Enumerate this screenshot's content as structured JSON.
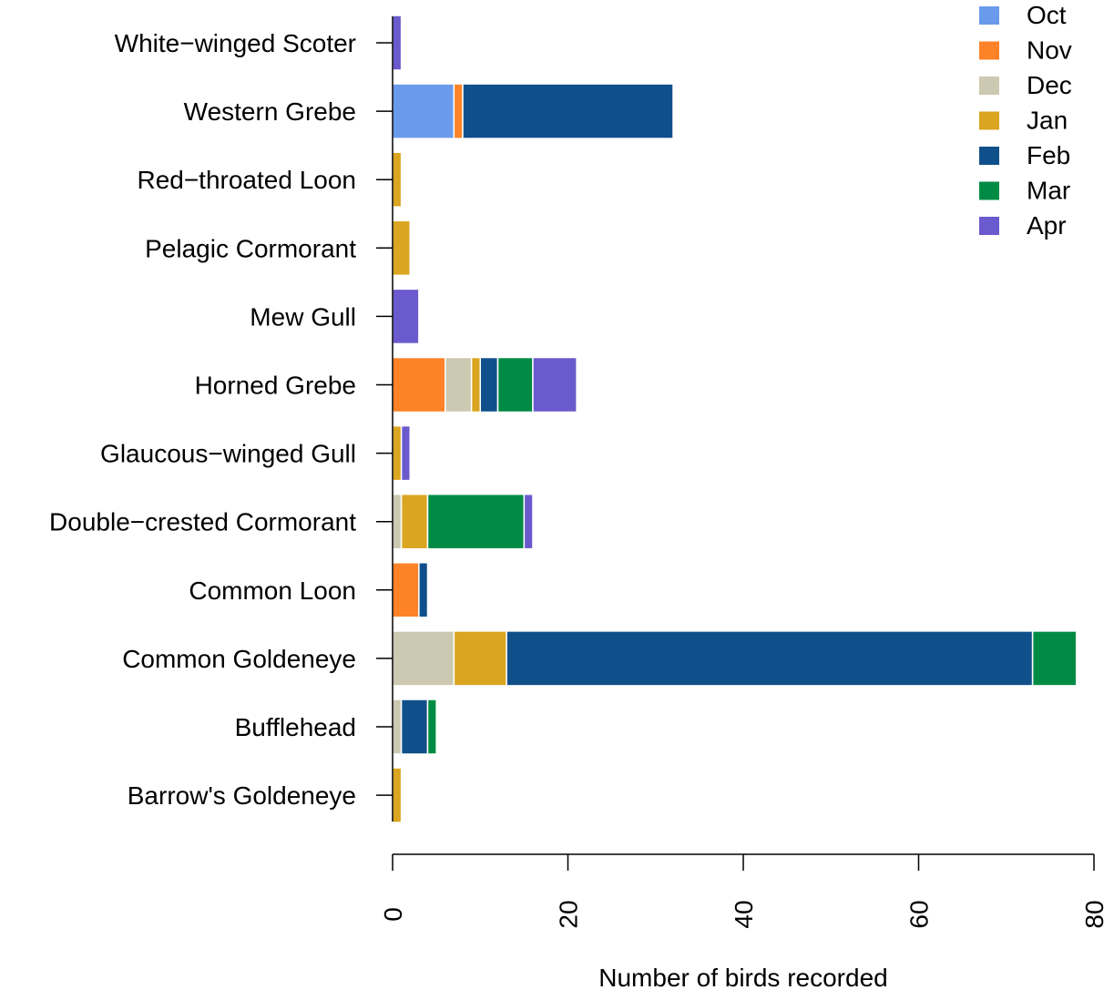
{
  "chart_data": {
    "type": "bar",
    "orientation": "horizontal",
    "stacked": true,
    "xlabel": "Number of birds recorded",
    "ylabel": "",
    "xlim": [
      0,
      80
    ],
    "x_ticks": [
      0,
      20,
      40,
      60,
      80
    ],
    "grid": false,
    "legend_position": "top-right",
    "categories": [
      "White−winged Scoter",
      "Western Grebe",
      "Red−throated Loon",
      "Pelagic Cormorant",
      "Mew Gull",
      "Horned Grebe",
      "Glaucous−winged Gull",
      "Double−crested Cormorant",
      "Common Loon",
      "Common Goldeneye",
      "Bufflehead",
      "Barrow's Goldeneye"
    ],
    "series": [
      {
        "name": "Oct",
        "color": "#6a9aea",
        "values": [
          0,
          7,
          0,
          0,
          0,
          0,
          0,
          0,
          0,
          0,
          0,
          0
        ]
      },
      {
        "name": "Nov",
        "color": "#fe8227",
        "values": [
          0,
          1,
          0,
          0,
          0,
          6,
          0,
          0,
          3,
          0,
          0,
          0
        ]
      },
      {
        "name": "Dec",
        "color": "#cdc8b1",
        "values": [
          0,
          0,
          0,
          0,
          0,
          3,
          0,
          1,
          0,
          7,
          1,
          0
        ]
      },
      {
        "name": "Jan",
        "color": "#daa520",
        "values": [
          0,
          0,
          1,
          2,
          0,
          1,
          1,
          3,
          0,
          6,
          0,
          1
        ]
      },
      {
        "name": "Feb",
        "color": "#10508a",
        "values": [
          0,
          24,
          0,
          0,
          0,
          2,
          0,
          0,
          1,
          60,
          3,
          0
        ]
      },
      {
        "name": "Mar",
        "color": "#008b45",
        "values": [
          0,
          0,
          0,
          0,
          0,
          4,
          0,
          11,
          0,
          5,
          1,
          0
        ]
      },
      {
        "name": "Apr",
        "color": "#6a5acd",
        "values": [
          1,
          0,
          0,
          0,
          3,
          5,
          1,
          1,
          0,
          0,
          0,
          0
        ]
      }
    ]
  }
}
